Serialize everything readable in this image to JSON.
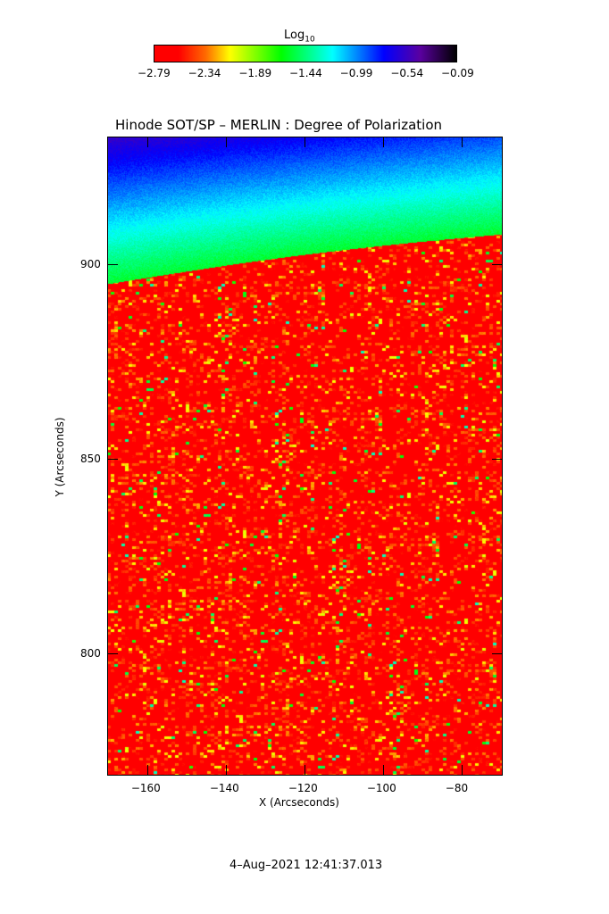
{
  "chart_data": {
    "type": "heatmap",
    "title": "Hinode SOT/SP – MERLIN : Degree of Polarization",
    "xlabel": "X (Arcseconds)",
    "ylabel": "Y (Arcseconds)",
    "xlim": [
      -170.2,
      -69.5
    ],
    "ylim": [
      768.6,
      932.8
    ],
    "xticks": [
      -160,
      -140,
      -120,
      -100,
      -80
    ],
    "yticks": [
      800,
      850,
      900
    ],
    "colorbar": {
      "label_base": "Log",
      "label_sub": "10",
      "ticks": [
        "-2.79",
        "-2.34",
        "-1.89",
        "-1.44",
        "-0.99",
        "-0.54",
        "-0.09"
      ],
      "range": [
        -2.79,
        -0.09
      ],
      "colormap": [
        "#ff0000",
        "#ff6a00",
        "#ffff00",
        "#00ff00",
        "#00ffff",
        "#0000ff",
        "#5a00a0",
        "#000000"
      ],
      "placement": "top"
    },
    "grid": false
  },
  "footer": {
    "timestamp": "4–Aug–2021 12:41:37.013"
  }
}
